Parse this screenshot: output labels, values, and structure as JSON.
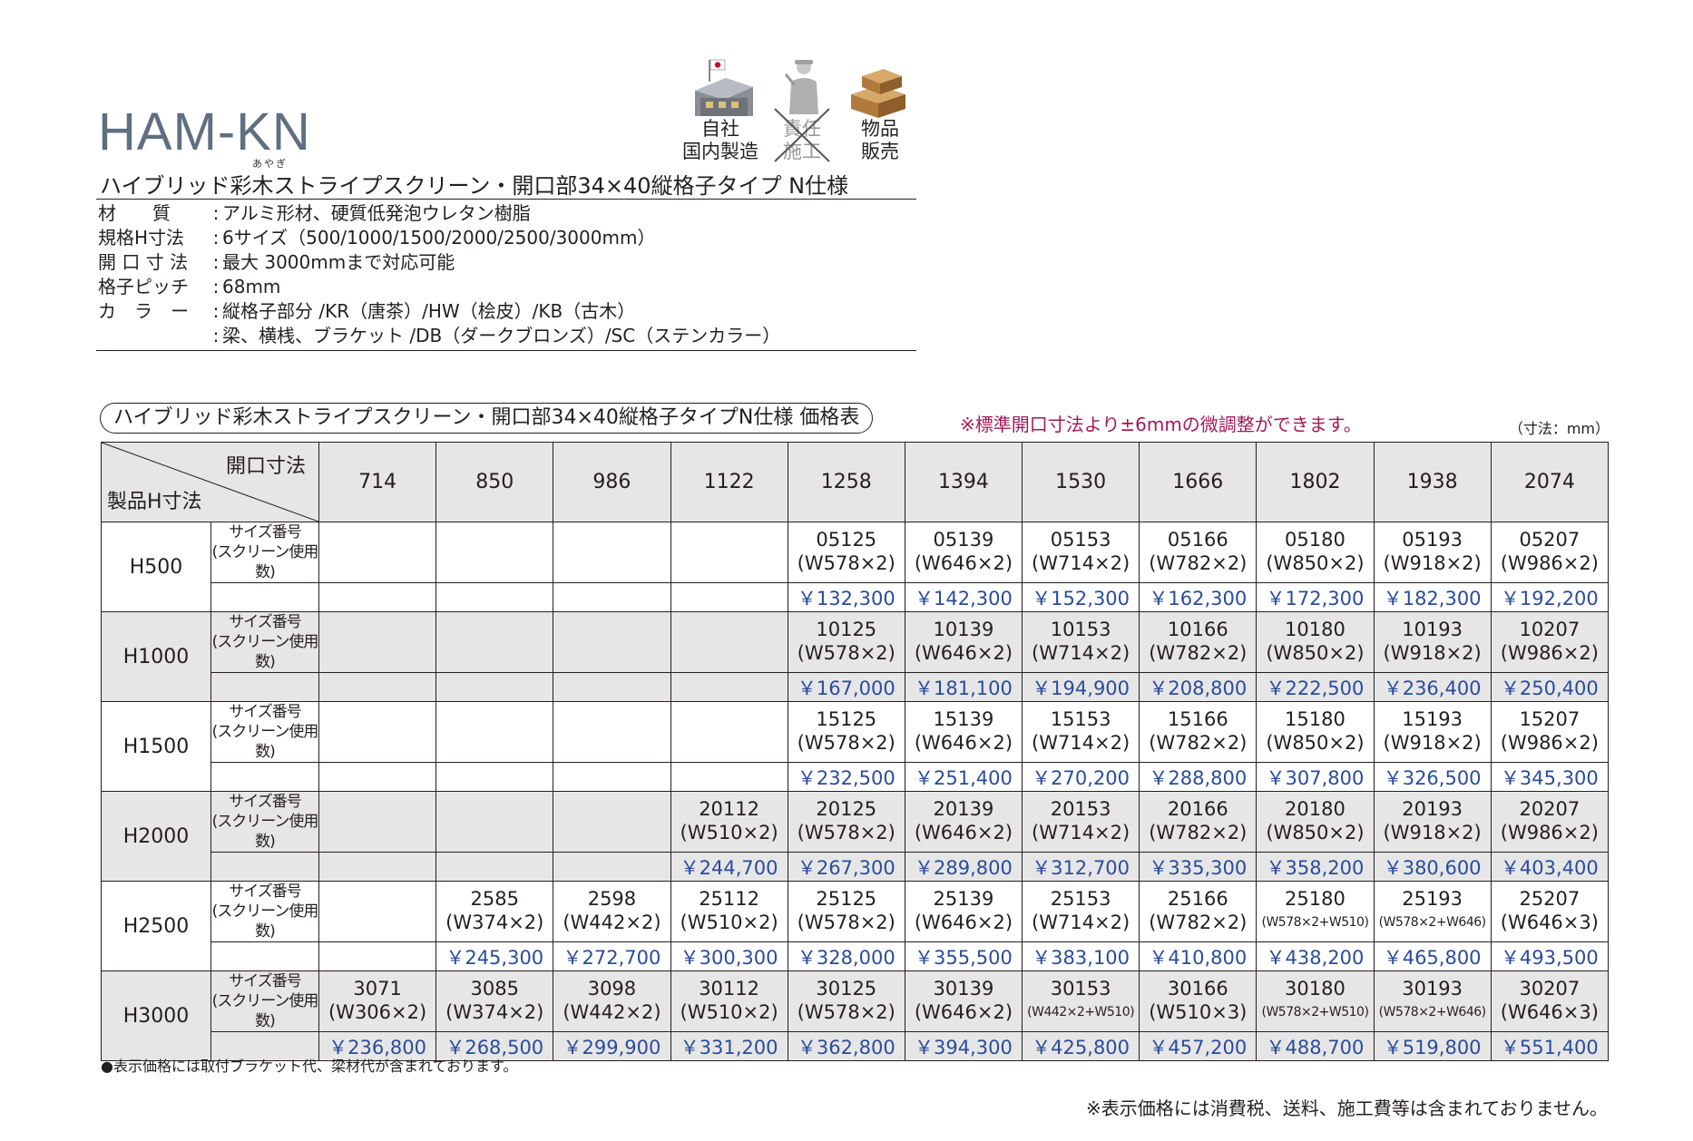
{
  "header": {
    "model": "HAM-KN",
    "ruby": "あやぎ",
    "subtitle": "ハイブリッド彩木ストライプスクリーン・開口部34×40縦格子タイプ N仕様"
  },
  "badges": [
    {
      "icon": "factory-japan-flag-icon",
      "line1": "自社",
      "line2": "国内製造",
      "crossed": false
    },
    {
      "icon": "worker-icon",
      "line1": "責任",
      "line2": "施工",
      "crossed": true
    },
    {
      "icon": "boxes-icon",
      "line1": "物品",
      "line2": "販売",
      "crossed": false
    }
  ],
  "specs": [
    {
      "label": "材　　質",
      "value": "アルミ形材、硬質低発泡ウレタン樹脂"
    },
    {
      "label": "規格H寸法",
      "value": "6サイズ（500/1000/1500/2000/2500/3000mm）"
    },
    {
      "label": "開 口 寸 法",
      "value": "最大 3000mmまで対応可能"
    },
    {
      "label": "格子ピッチ",
      "value": "68mm"
    },
    {
      "label": "カ　ラ　ー",
      "value": "縦格子部分 /KR（唐茶）/HW（桧皮）/KB（古木）"
    },
    {
      "label": "",
      "value": "梁、横桟、ブラケット /DB（ダークブロンズ）/SC（ステンカラー）"
    }
  ],
  "price_table": {
    "title": "ハイブリッド彩木ストライプスクリーン・開口部34×40縦格子タイプN仕様 価格表",
    "note": "※標準開口寸法より±6mmの微調整ができます。",
    "unit": "（寸法：mm）",
    "corner_top": "開口寸法",
    "corner_bottom": "製品H寸法",
    "sublabel": "サイズ番号\n(スクリーン使用数)",
    "columns": [
      "714",
      "850",
      "986",
      "1122",
      "1258",
      "1394",
      "1530",
      "1666",
      "1802",
      "1938",
      "2074"
    ],
    "rows": [
      {
        "h": "H500",
        "cells": [
          null,
          null,
          null,
          null,
          {
            "code": "05125",
            "w": "(W578×2)",
            "price": "￥132,300"
          },
          {
            "code": "05139",
            "w": "(W646×2)",
            "price": "￥142,300"
          },
          {
            "code": "05153",
            "w": "(W714×2)",
            "price": "￥152,300"
          },
          {
            "code": "05166",
            "w": "(W782×2)",
            "price": "￥162,300"
          },
          {
            "code": "05180",
            "w": "(W850×2)",
            "price": "￥172,300"
          },
          {
            "code": "05193",
            "w": "(W918×2)",
            "price": "￥182,300"
          },
          {
            "code": "05207",
            "w": "(W986×2)",
            "price": "￥192,200"
          }
        ]
      },
      {
        "h": "H1000",
        "cells": [
          null,
          null,
          null,
          null,
          {
            "code": "10125",
            "w": "(W578×2)",
            "price": "￥167,000"
          },
          {
            "code": "10139",
            "w": "(W646×2)",
            "price": "￥181,100"
          },
          {
            "code": "10153",
            "w": "(W714×2)",
            "price": "￥194,900"
          },
          {
            "code": "10166",
            "w": "(W782×2)",
            "price": "￥208,800"
          },
          {
            "code": "10180",
            "w": "(W850×2)",
            "price": "￥222,500"
          },
          {
            "code": "10193",
            "w": "(W918×2)",
            "price": "￥236,400"
          },
          {
            "code": "10207",
            "w": "(W986×2)",
            "price": "￥250,400"
          }
        ]
      },
      {
        "h": "H1500",
        "cells": [
          null,
          null,
          null,
          null,
          {
            "code": "15125",
            "w": "(W578×2)",
            "price": "￥232,500"
          },
          {
            "code": "15139",
            "w": "(W646×2)",
            "price": "￥251,400"
          },
          {
            "code": "15153",
            "w": "(W714×2)",
            "price": "￥270,200"
          },
          {
            "code": "15166",
            "w": "(W782×2)",
            "price": "￥288,800"
          },
          {
            "code": "15180",
            "w": "(W850×2)",
            "price": "￥307,800"
          },
          {
            "code": "15193",
            "w": "(W918×2)",
            "price": "￥326,500"
          },
          {
            "code": "15207",
            "w": "(W986×2)",
            "price": "￥345,300"
          }
        ]
      },
      {
        "h": "H2000",
        "cells": [
          null,
          null,
          null,
          {
            "code": "20112",
            "w": "(W510×2)",
            "price": "￥244,700"
          },
          {
            "code": "20125",
            "w": "(W578×2)",
            "price": "￥267,300"
          },
          {
            "code": "20139",
            "w": "(W646×2)",
            "price": "￥289,800"
          },
          {
            "code": "20153",
            "w": "(W714×2)",
            "price": "￥312,700"
          },
          {
            "code": "20166",
            "w": "(W782×2)",
            "price": "￥335,300"
          },
          {
            "code": "20180",
            "w": "(W850×2)",
            "price": "￥358,200"
          },
          {
            "code": "20193",
            "w": "(W918×2)",
            "price": "￥380,600"
          },
          {
            "code": "20207",
            "w": "(W986×2)",
            "price": "￥403,400"
          }
        ]
      },
      {
        "h": "H2500",
        "cells": [
          null,
          {
            "code": "2585",
            "w": "(W374×2)",
            "price": "￥245,300"
          },
          {
            "code": "2598",
            "w": "(W442×2)",
            "price": "￥272,700"
          },
          {
            "code": "25112",
            "w": "(W510×2)",
            "price": "￥300,300"
          },
          {
            "code": "25125",
            "w": "(W578×2)",
            "price": "￥328,000"
          },
          {
            "code": "25139",
            "w": "(W646×2)",
            "price": "￥355,500"
          },
          {
            "code": "25153",
            "w": "(W714×2)",
            "price": "￥383,100"
          },
          {
            "code": "25166",
            "w": "(W782×2)",
            "price": "￥410,800"
          },
          {
            "code": "25180",
            "w": "(W578×2+W510)",
            "price": "￥438,200",
            "small": true
          },
          {
            "code": "25193",
            "w": "(W578×2+W646)",
            "price": "￥465,800",
            "small": true
          },
          {
            "code": "25207",
            "w": "(W646×3)",
            "price": "￥493,500"
          }
        ]
      },
      {
        "h": "H3000",
        "cells": [
          {
            "code": "3071",
            "w": "(W306×2)",
            "price": "￥236,800"
          },
          {
            "code": "3085",
            "w": "(W374×2)",
            "price": "￥268,500"
          },
          {
            "code": "3098",
            "w": "(W442×2)",
            "price": "￥299,900"
          },
          {
            "code": "30112",
            "w": "(W510×2)",
            "price": "￥331,200"
          },
          {
            "code": "30125",
            "w": "(W578×2)",
            "price": "￥362,800"
          },
          {
            "code": "30139",
            "w": "(W646×2)",
            "price": "￥394,300"
          },
          {
            "code": "30153",
            "w": "(W442×2+W510)",
            "price": "￥425,800",
            "small": true
          },
          {
            "code": "30166",
            "w": "(W510×3)",
            "price": "￥457,200"
          },
          {
            "code": "30180",
            "w": "(W578×2+W510)",
            "price": "￥488,700",
            "small": true
          },
          {
            "code": "30193",
            "w": "(W578×2+W646)",
            "price": "￥519,800",
            "small": true
          },
          {
            "code": "30207",
            "w": "(W646×3)",
            "price": "￥551,400"
          }
        ]
      }
    ]
  },
  "footnotes": {
    "left": "●表示価格には取付ブラケット代、梁材代が含まれております。",
    "right": "※表示価格には消費税、送料、施工費等は含まれておりません。"
  },
  "colors": {
    "price": "#2b4c9b",
    "note": "#a3195b",
    "title": "#5f6f82",
    "shade": "#e6e6e6"
  }
}
